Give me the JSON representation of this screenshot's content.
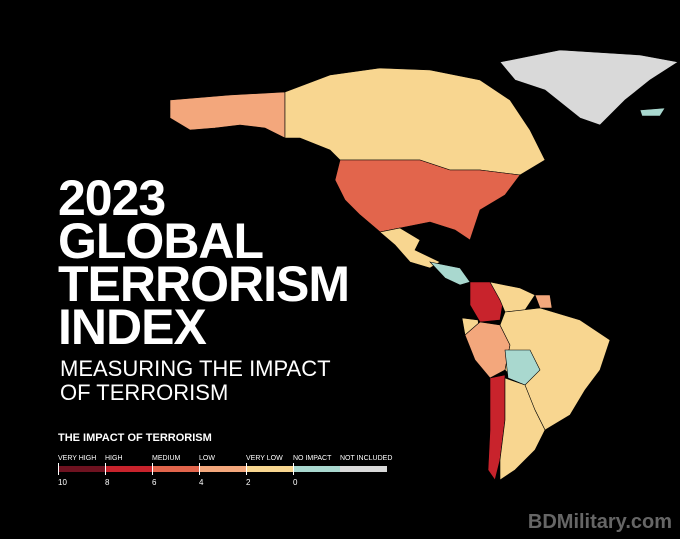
{
  "title": {
    "lines": [
      "2023",
      "GLOBAL",
      "TERRORISM",
      "INDEX"
    ]
  },
  "subtitle": {
    "lines": [
      "MEASURING THE IMPACT",
      "OF TERRORISM"
    ]
  },
  "legend": {
    "title": "THE IMPACT OF TERRORISM",
    "items": [
      {
        "label": "VERY HIGH",
        "color": "#6e1220"
      },
      {
        "label": "HIGH",
        "color": "#c8232c"
      },
      {
        "label": "MEDIUM",
        "color": "#e2654c"
      },
      {
        "label": "LOW",
        "color": "#f3a77c"
      },
      {
        "label": "VERY LOW",
        "color": "#f8d690"
      },
      {
        "label": "NO IMPACT",
        "color": "#a9d8cf"
      },
      {
        "label": "NOT INCLUDED",
        "color": "#d9d9d9"
      }
    ],
    "scale": [
      10,
      8,
      6,
      4,
      2,
      0
    ]
  },
  "watermark": "BDMilitary.com"
}
